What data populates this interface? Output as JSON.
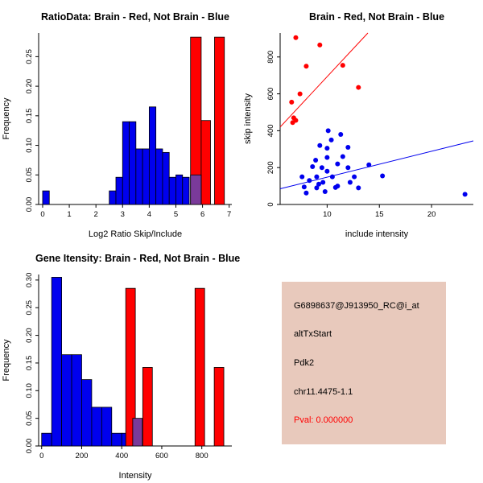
{
  "colors": {
    "blue": "#0000EE",
    "red": "#FF0000",
    "purple": "#7A3A9A",
    "axis": "#000000"
  },
  "info_box": {
    "bg": "#E8C9BC",
    "lines": [
      "G6898637@J913950_RC@i_at",
      "altTxStart",
      "Pdk2",
      "chr11.4475-1.1",
      "Pval: 0.000000"
    ]
  },
  "chart_data": [
    {
      "type": "bar",
      "title": "RatioData: Brain - Red, Not Brain - Blue",
      "xlabel": "Log2 Ratio Skip/Include",
      "ylabel": "Frequency",
      "xlim": [
        -0.15,
        7.1
      ],
      "ylim": [
        0,
        0.29
      ],
      "xticks": [
        0,
        1,
        2,
        3,
        4,
        5,
        6,
        7
      ],
      "xtick_labels": [
        "0",
        "1",
        "2",
        "3",
        "4",
        "5",
        "6",
        "7"
      ],
      "yticks": [
        0,
        0.05,
        0.1,
        0.15,
        0.2,
        0.25
      ],
      "ytick_labels": [
        "0.00",
        "0.05",
        "0.10",
        "0.15",
        "0.20",
        "0.25"
      ],
      "grid": false,
      "legend": "none",
      "bars": [
        {
          "x0": 0,
          "x1": 0.25,
          "h": 0.023,
          "c": "blue"
        },
        {
          "x0": 2.5,
          "x1": 2.75,
          "h": 0.023,
          "c": "blue"
        },
        {
          "x0": 2.75,
          "x1": 3,
          "h": 0.046,
          "c": "blue"
        },
        {
          "x0": 3,
          "x1": 3.25,
          "h": 0.14,
          "c": "blue"
        },
        {
          "x0": 3.25,
          "x1": 3.5,
          "h": 0.14,
          "c": "blue"
        },
        {
          "x0": 3.5,
          "x1": 3.75,
          "h": 0.094,
          "c": "blue"
        },
        {
          "x0": 3.75,
          "x1": 4,
          "h": 0.094,
          "c": "blue"
        },
        {
          "x0": 4,
          "x1": 4.25,
          "h": 0.165,
          "c": "blue"
        },
        {
          "x0": 4.25,
          "x1": 4.5,
          "h": 0.094,
          "c": "blue"
        },
        {
          "x0": 4.5,
          "x1": 4.75,
          "h": 0.088,
          "c": "blue"
        },
        {
          "x0": 4.75,
          "x1": 5,
          "h": 0.046,
          "c": "blue"
        },
        {
          "x0": 5,
          "x1": 5.25,
          "h": 0.05,
          "c": "blue"
        },
        {
          "x0": 5.25,
          "x1": 5.5,
          "h": 0.046,
          "c": "blue"
        },
        {
          "x0": 5.55,
          "x1": 5.95,
          "h": 0.283,
          "c": "red"
        },
        {
          "x0": 5.95,
          "x1": 6.3,
          "h": 0.142,
          "c": "red"
        },
        {
          "x0": 6.45,
          "x1": 6.82,
          "h": 0.283,
          "c": "red"
        },
        {
          "x0": 5.55,
          "x1": 5.95,
          "h": 0.05,
          "c": "purple"
        }
      ]
    },
    {
      "type": "scatter",
      "title": "Brain - Red, Not Brain - Blue",
      "xlabel": "include intensity",
      "ylabel": "skip intensity",
      "xlim": [
        5.5,
        24
      ],
      "ylim": [
        0,
        930
      ],
      "xticks": [
        10,
        15,
        20
      ],
      "xtick_labels": [
        "10",
        "15",
        "20"
      ],
      "yticks": [
        0,
        200,
        400,
        600,
        800
      ],
      "ytick_labels": [
        "0",
        "200",
        "400",
        "600",
        "800"
      ],
      "grid": false,
      "legend": "none",
      "series": [
        {
          "name": "Brain",
          "c": "red",
          "points": [
            [
              7.0,
              905
            ],
            [
              9.3,
              865
            ],
            [
              8.0,
              750
            ],
            [
              11.5,
              755
            ],
            [
              13.0,
              635
            ],
            [
              7.4,
              600
            ],
            [
              6.6,
              555
            ],
            [
              6.8,
              470
            ],
            [
              7.0,
              456
            ],
            [
              6.7,
              444
            ]
          ]
        },
        {
          "name": "Not Brain",
          "c": "blue",
          "points": [
            [
              7.6,
              150
            ],
            [
              7.8,
              95
            ],
            [
              8.0,
              62
            ],
            [
              8.3,
              130
            ],
            [
              8.6,
              205
            ],
            [
              8.9,
              240
            ],
            [
              9.0,
              90
            ],
            [
              9.0,
              150
            ],
            [
              9.2,
              110
            ],
            [
              9.3,
              320
            ],
            [
              9.5,
              200
            ],
            [
              9.6,
              120
            ],
            [
              9.8,
              70
            ],
            [
              10.0,
              180
            ],
            [
              10.0,
              255
            ],
            [
              10.0,
              305
            ],
            [
              10.1,
              400
            ],
            [
              10.4,
              350
            ],
            [
              10.5,
              150
            ],
            [
              10.8,
              92
            ],
            [
              11.0,
              220
            ],
            [
              11.0,
              100
            ],
            [
              11.3,
              380
            ],
            [
              11.5,
              260
            ],
            [
              12.0,
              310
            ],
            [
              12.0,
              200
            ],
            [
              12.2,
              120
            ],
            [
              12.6,
              150
            ],
            [
              13.0,
              90
            ],
            [
              14.0,
              215
            ],
            [
              15.3,
              155
            ],
            [
              23.2,
              55
            ]
          ]
        }
      ],
      "lines": [
        {
          "c": "red",
          "x0": 5.5,
          "y0": 420,
          "x1": 13.9,
          "y1": 930
        },
        {
          "c": "blue",
          "x0": 5.5,
          "y0": 85,
          "x1": 24,
          "y1": 345
        }
      ]
    },
    {
      "type": "bar",
      "title": "Gene Itensity: Brain - Red, Not Brain - Blue",
      "xlabel": "Intensity",
      "ylabel": "Frequency",
      "xlim": [
        -15,
        950
      ],
      "ylim": [
        0,
        0.31
      ],
      "xticks": [
        0,
        200,
        400,
        600,
        800
      ],
      "xtick_labels": [
        "0",
        "200",
        "400",
        "600",
        "800"
      ],
      "yticks": [
        0,
        0.05,
        0.1,
        0.15,
        0.2,
        0.25,
        0.3
      ],
      "ytick_labels": [
        "0.00",
        "0.05",
        "0.10",
        "0.15",
        "0.20",
        "0.25",
        "0.30"
      ],
      "grid": false,
      "legend": "none",
      "bars": [
        {
          "x0": 0,
          "x1": 50,
          "h": 0.023,
          "c": "blue"
        },
        {
          "x0": 50,
          "x1": 100,
          "h": 0.305,
          "c": "blue"
        },
        {
          "x0": 100,
          "x1": 150,
          "h": 0.165,
          "c": "blue"
        },
        {
          "x0": 150,
          "x1": 200,
          "h": 0.165,
          "c": "blue"
        },
        {
          "x0": 200,
          "x1": 250,
          "h": 0.12,
          "c": "blue"
        },
        {
          "x0": 250,
          "x1": 300,
          "h": 0.07,
          "c": "blue"
        },
        {
          "x0": 300,
          "x1": 350,
          "h": 0.07,
          "c": "blue"
        },
        {
          "x0": 350,
          "x1": 400,
          "h": 0.023,
          "c": "blue"
        },
        {
          "x0": 400,
          "x1": 450,
          "h": 0.023,
          "c": "blue"
        },
        {
          "x0": 420,
          "x1": 468,
          "h": 0.285,
          "c": "red"
        },
        {
          "x0": 505,
          "x1": 553,
          "h": 0.142,
          "c": "red"
        },
        {
          "x0": 766,
          "x1": 814,
          "h": 0.285,
          "c": "red"
        },
        {
          "x0": 862,
          "x1": 910,
          "h": 0.142,
          "c": "red"
        },
        {
          "x0": 455,
          "x1": 503,
          "h": 0.05,
          "c": "purple"
        }
      ]
    }
  ]
}
